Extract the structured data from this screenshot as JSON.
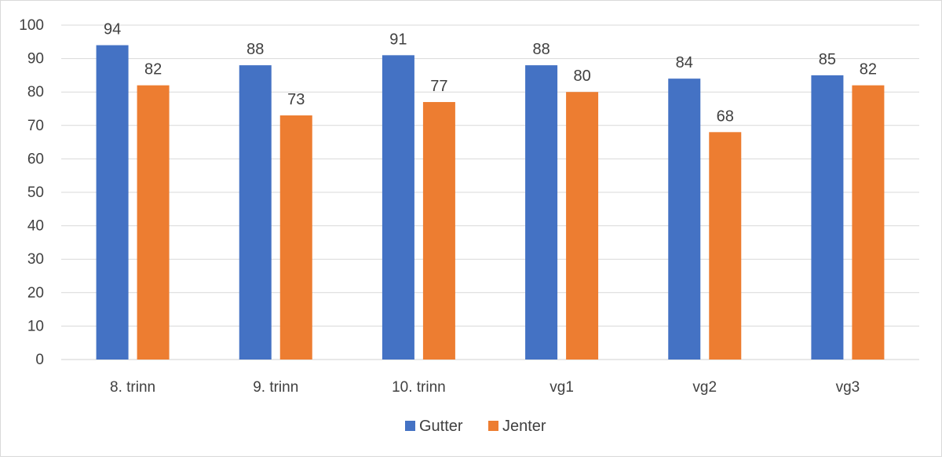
{
  "chart_data": {
    "type": "bar",
    "categories": [
      "8. trinn",
      "9. trinn",
      "10. trinn",
      "vg1",
      "vg2",
      "vg3"
    ],
    "series": [
      {
        "name": "Gutter",
        "values": [
          94,
          88,
          91,
          88,
          84,
          85
        ],
        "color": "#4472C4"
      },
      {
        "name": "Jenter",
        "values": [
          82,
          73,
          77,
          80,
          68,
          82
        ],
        "color": "#ED7D31"
      }
    ],
    "yticks": [
      "0",
      "10",
      "20",
      "30",
      "40",
      "50",
      "60",
      "70",
      "80",
      "90",
      "100"
    ],
    "ylim": [
      0,
      100
    ],
    "grid": true,
    "legend_position": "bottom",
    "data_labels": true
  }
}
